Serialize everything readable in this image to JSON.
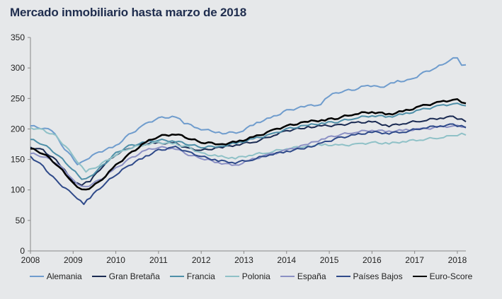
{
  "chart_data": {
    "type": "line",
    "title": "Mercado inmobiliario hasta marzo de 2018",
    "x_ticks": [
      "2008",
      "2009",
      "2010",
      "2011",
      "2012",
      "2013",
      "2014",
      "2015",
      "2016",
      "2017",
      "2018"
    ],
    "x_range": [
      2008.0,
      2018.2
    ],
    "y_ticks": [
      "0",
      "50",
      "100",
      "150",
      "200",
      "250",
      "300",
      "350"
    ],
    "ylim": [
      0,
      350
    ],
    "grid": false,
    "legend_position": "bottom",
    "series": [
      {
        "name": "Alemania",
        "color": "#6f9ccd",
        "width": 2,
        "points": [
          [
            2008.0,
            205
          ],
          [
            2008.5,
            198
          ],
          [
            2008.8,
            168
          ],
          [
            2009.1,
            143
          ],
          [
            2009.3,
            150
          ],
          [
            2009.6,
            162
          ],
          [
            2010.0,
            172
          ],
          [
            2010.3,
            190
          ],
          [
            2010.7,
            208
          ],
          [
            2011.0,
            218
          ],
          [
            2011.4,
            220
          ],
          [
            2011.6,
            210
          ],
          [
            2012.0,
            200
          ],
          [
            2012.5,
            193
          ],
          [
            2012.9,
            195
          ],
          [
            2013.3,
            210
          ],
          [
            2013.7,
            220
          ],
          [
            2014.0,
            230
          ],
          [
            2014.5,
            238
          ],
          [
            2014.8,
            240
          ],
          [
            2015.0,
            255
          ],
          [
            2015.3,
            262
          ],
          [
            2015.6,
            265
          ],
          [
            2015.9,
            272
          ],
          [
            2016.2,
            268
          ],
          [
            2016.6,
            278
          ],
          [
            2016.9,
            280
          ],
          [
            2017.2,
            292
          ],
          [
            2017.5,
            300
          ],
          [
            2017.8,
            312
          ],
          [
            2018.0,
            318
          ],
          [
            2018.1,
            306
          ],
          [
            2018.2,
            305
          ]
        ]
      },
      {
        "name": "Gran Bretaña",
        "color": "#1a2a52",
        "width": 2,
        "points": [
          [
            2008.0,
            170
          ],
          [
            2008.3,
            165
          ],
          [
            2008.6,
            148
          ],
          [
            2008.8,
            132
          ],
          [
            2009.0,
            112
          ],
          [
            2009.2,
            108
          ],
          [
            2009.4,
            115
          ],
          [
            2009.7,
            140
          ],
          [
            2010.0,
            158
          ],
          [
            2010.3,
            168
          ],
          [
            2010.6,
            175
          ],
          [
            2011.0,
            177
          ],
          [
            2011.4,
            176
          ],
          [
            2011.7,
            168
          ],
          [
            2012.0,
            165
          ],
          [
            2012.5,
            170
          ],
          [
            2012.9,
            175
          ],
          [
            2013.3,
            180
          ],
          [
            2013.7,
            190
          ],
          [
            2014.0,
            197
          ],
          [
            2014.5,
            203
          ],
          [
            2014.9,
            205
          ],
          [
            2015.2,
            206
          ],
          [
            2015.6,
            210
          ],
          [
            2016.0,
            212
          ],
          [
            2016.4,
            205
          ],
          [
            2016.8,
            210
          ],
          [
            2017.2,
            214
          ],
          [
            2017.6,
            218
          ],
          [
            2017.9,
            220
          ],
          [
            2018.1,
            215
          ],
          [
            2018.2,
            212
          ]
        ]
      },
      {
        "name": "Francia",
        "color": "#4e8fa8",
        "width": 2,
        "points": [
          [
            2008.0,
            183
          ],
          [
            2008.3,
            175
          ],
          [
            2008.6,
            160
          ],
          [
            2008.9,
            140
          ],
          [
            2009.2,
            118
          ],
          [
            2009.4,
            122
          ],
          [
            2009.7,
            140
          ],
          [
            2010.0,
            160
          ],
          [
            2010.3,
            172
          ],
          [
            2010.7,
            178
          ],
          [
            2011.0,
            182
          ],
          [
            2011.4,
            180
          ],
          [
            2011.7,
            175
          ],
          [
            2012.0,
            170
          ],
          [
            2012.5,
            172
          ],
          [
            2012.9,
            178
          ],
          [
            2013.3,
            185
          ],
          [
            2013.7,
            192
          ],
          [
            2014.0,
            200
          ],
          [
            2014.5,
            206
          ],
          [
            2014.9,
            210
          ],
          [
            2015.2,
            212
          ],
          [
            2015.6,
            218
          ],
          [
            2016.0,
            222
          ],
          [
            2016.4,
            220
          ],
          [
            2016.8,
            225
          ],
          [
            2017.2,
            232
          ],
          [
            2017.6,
            238
          ],
          [
            2017.9,
            241
          ],
          [
            2018.1,
            240
          ],
          [
            2018.2,
            238
          ]
        ]
      },
      {
        "name": "Polonia",
        "color": "#8fc1c7",
        "width": 2,
        "points": [
          [
            2008.0,
            202
          ],
          [
            2008.3,
            198
          ],
          [
            2008.6,
            188
          ],
          [
            2008.9,
            165
          ],
          [
            2009.1,
            145
          ],
          [
            2009.3,
            130
          ],
          [
            2009.6,
            140
          ],
          [
            2010.0,
            158
          ],
          [
            2010.3,
            168
          ],
          [
            2010.7,
            175
          ],
          [
            2011.0,
            178
          ],
          [
            2011.4,
            175
          ],
          [
            2011.7,
            170
          ],
          [
            2012.0,
            160
          ],
          [
            2012.4,
            155
          ],
          [
            2012.8,
            152
          ],
          [
            2013.2,
            158
          ],
          [
            2013.6,
            162
          ],
          [
            2014.0,
            168
          ],
          [
            2014.5,
            172
          ],
          [
            2014.9,
            174
          ],
          [
            2015.3,
            173
          ],
          [
            2015.7,
            175
          ],
          [
            2016.0,
            178
          ],
          [
            2016.4,
            176
          ],
          [
            2016.8,
            180
          ],
          [
            2017.2,
            183
          ],
          [
            2017.6,
            186
          ],
          [
            2017.9,
            189
          ],
          [
            2018.1,
            192
          ],
          [
            2018.2,
            190
          ]
        ]
      },
      {
        "name": "España",
        "color": "#8b90c4",
        "width": 2,
        "points": [
          [
            2008.0,
            160
          ],
          [
            2008.3,
            155
          ],
          [
            2008.6,
            145
          ],
          [
            2008.9,
            125
          ],
          [
            2009.1,
            110
          ],
          [
            2009.3,
            105
          ],
          [
            2009.6,
            115
          ],
          [
            2010.0,
            135
          ],
          [
            2010.3,
            150
          ],
          [
            2010.7,
            165
          ],
          [
            2011.0,
            170
          ],
          [
            2011.4,
            168
          ],
          [
            2011.7,
            158
          ],
          [
            2012.0,
            152
          ],
          [
            2012.4,
            145
          ],
          [
            2012.8,
            140
          ],
          [
            2013.2,
            150
          ],
          [
            2013.6,
            158
          ],
          [
            2014.0,
            165
          ],
          [
            2014.5,
            175
          ],
          [
            2014.9,
            185
          ],
          [
            2015.2,
            190
          ],
          [
            2015.6,
            195
          ],
          [
            2016.0,
            198
          ],
          [
            2016.4,
            196
          ],
          [
            2016.8,
            198
          ],
          [
            2017.2,
            200
          ],
          [
            2017.6,
            203
          ],
          [
            2017.9,
            205
          ],
          [
            2018.1,
            204
          ],
          [
            2018.2,
            203
          ]
        ]
      },
      {
        "name": "Países Bajos",
        "color": "#2f4a8a",
        "width": 2,
        "points": [
          [
            2008.0,
            155
          ],
          [
            2008.3,
            138
          ],
          [
            2008.6,
            115
          ],
          [
            2008.9,
            98
          ],
          [
            2009.1,
            85
          ],
          [
            2009.25,
            77
          ],
          [
            2009.4,
            88
          ],
          [
            2009.7,
            108
          ],
          [
            2010.0,
            125
          ],
          [
            2010.3,
            140
          ],
          [
            2010.7,
            155
          ],
          [
            2011.0,
            165
          ],
          [
            2011.4,
            170
          ],
          [
            2011.7,
            162
          ],
          [
            2012.0,
            155
          ],
          [
            2012.4,
            148
          ],
          [
            2012.8,
            145
          ],
          [
            2013.2,
            150
          ],
          [
            2013.6,
            158
          ],
          [
            2014.0,
            163
          ],
          [
            2014.5,
            170
          ],
          [
            2014.9,
            178
          ],
          [
            2015.2,
            185
          ],
          [
            2015.6,
            190
          ],
          [
            2016.0,
            195
          ],
          [
            2016.4,
            193
          ],
          [
            2016.8,
            196
          ],
          [
            2017.2,
            202
          ],
          [
            2017.6,
            205
          ],
          [
            2017.9,
            207
          ],
          [
            2018.1,
            204
          ],
          [
            2018.2,
            202
          ]
        ]
      },
      {
        "name": "Euro-Score",
        "color": "#000000",
        "width": 2.5,
        "points": [
          [
            2008.0,
            168
          ],
          [
            2008.3,
            160
          ],
          [
            2008.6,
            143
          ],
          [
            2008.9,
            120
          ],
          [
            2009.1,
            105
          ],
          [
            2009.3,
            100
          ],
          [
            2009.6,
            112
          ],
          [
            2010.0,
            140
          ],
          [
            2010.3,
            158
          ],
          [
            2010.7,
            178
          ],
          [
            2011.0,
            188
          ],
          [
            2011.4,
            192
          ],
          [
            2011.7,
            185
          ],
          [
            2012.0,
            178
          ],
          [
            2012.5,
            175
          ],
          [
            2012.9,
            180
          ],
          [
            2013.3,
            188
          ],
          [
            2013.7,
            198
          ],
          [
            2014.0,
            205
          ],
          [
            2014.5,
            212
          ],
          [
            2014.9,
            215
          ],
          [
            2015.2,
            218
          ],
          [
            2015.6,
            225
          ],
          [
            2016.0,
            228
          ],
          [
            2016.4,
            224
          ],
          [
            2016.8,
            230
          ],
          [
            2017.2,
            238
          ],
          [
            2017.6,
            244
          ],
          [
            2017.9,
            248
          ],
          [
            2018.0,
            250
          ],
          [
            2018.1,
            245
          ],
          [
            2018.2,
            242
          ]
        ]
      }
    ]
  }
}
